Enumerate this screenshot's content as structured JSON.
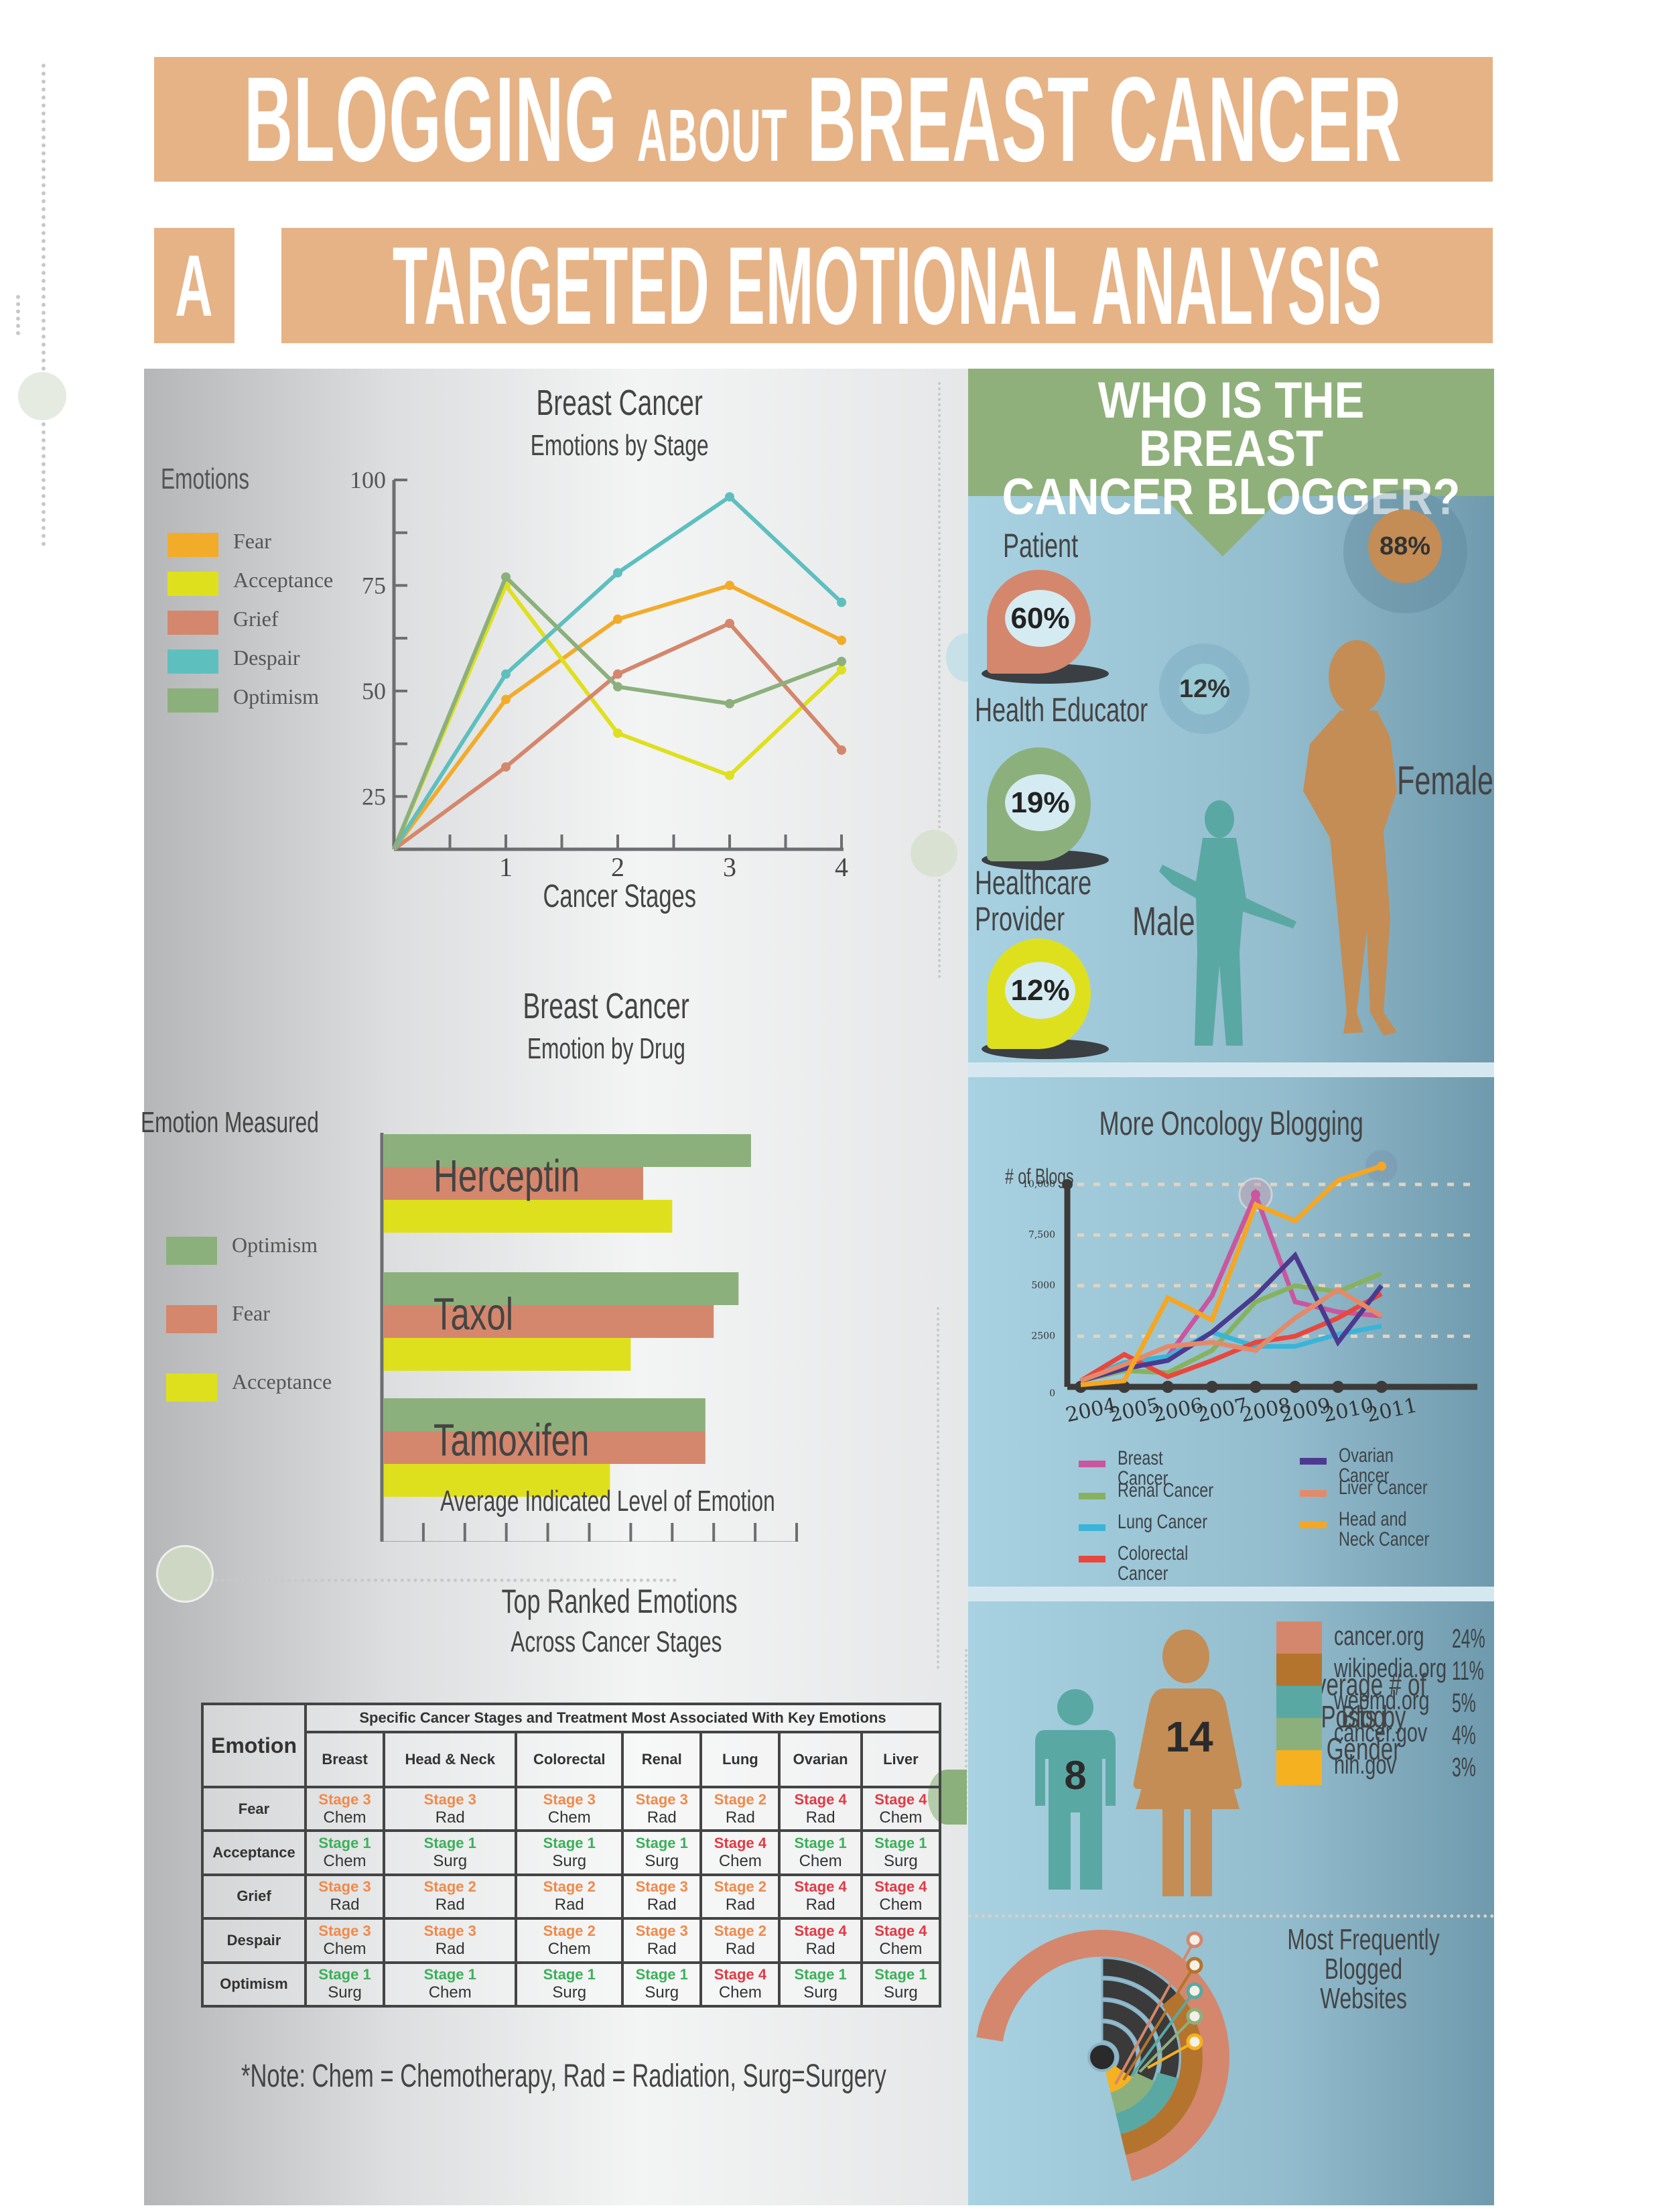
{
  "header": {
    "title_line1_a": "BLOGGING",
    "title_line1_b": "ABOUT",
    "title_line1_c": "BREAST CANCER",
    "title_line2_a": "A",
    "title_line2_b": "TARGETED EMOTIONAL ANALYSIS",
    "accent": "#e6b386"
  },
  "emotions_by_stage": {
    "chart_data": {
      "type": "line",
      "title": "Breast Cancer",
      "subtitle": "Emotions by Stage",
      "xlabel": "Cancer Stages",
      "ylabel": "",
      "legend_title": "Emotions",
      "x": [
        0,
        1,
        2,
        3,
        4
      ],
      "xticks": [
        "1",
        "2",
        "3",
        "4"
      ],
      "yticks": [
        "25",
        "50",
        "75",
        "100"
      ],
      "ylim": [
        12.5,
        100
      ],
      "legend": "left",
      "series": [
        {
          "name": "Fear",
          "color": "#f2ac2a",
          "values": [
            12.5,
            48,
            67,
            75,
            62
          ]
        },
        {
          "name": "Acceptance",
          "color": "#dfe01d",
          "values": [
            12.5,
            75,
            40,
            30,
            55
          ]
        },
        {
          "name": "Grief",
          "color": "#d4876c",
          "values": [
            12.5,
            32,
            54,
            66,
            36
          ]
        },
        {
          "name": "Despair",
          "color": "#5ebfbf",
          "values": [
            12.5,
            54,
            78,
            96,
            71
          ]
        },
        {
          "name": "Optimism",
          "color": "#8cb07c",
          "values": [
            12.5,
            77,
            51,
            47,
            57
          ]
        }
      ]
    }
  },
  "emotion_by_drug": {
    "chart_data": {
      "type": "bar",
      "orientation": "horizontal",
      "title": "Breast Cancer",
      "subtitle": "Emotion by Drug",
      "xlabel": "Average Indicated Level of Emotion",
      "legend_title": "Emotion Measured",
      "categories": [
        "Herceptin",
        "Taxol",
        "Tamoxifen"
      ],
      "xticks": [
        "10",
        "20",
        "30",
        "40",
        "50",
        "60",
        "70",
        "80",
        "90",
        "100"
      ],
      "xlim": [
        0,
        100
      ],
      "legend": "left",
      "series": [
        {
          "name": "Optimism",
          "color": "#8cb07c",
          "values": [
            89,
            86,
            78
          ]
        },
        {
          "name": "Fear",
          "color": "#d4876c",
          "values": [
            63,
            80,
            78
          ]
        },
        {
          "name": "Acceptance",
          "color": "#dfe01d",
          "values": [
            70,
            60,
            55
          ]
        }
      ]
    }
  },
  "top_ranked": {
    "title": "Top Ranked Emotions",
    "subtitle": "Across Cancer Stages",
    "col_header_emotion": "Emotion",
    "col_header_group": "Specific Cancer Stages and Treatment Most Associated With Key Emotions",
    "columns": [
      "Breast",
      "Head & Neck",
      "Colorectal",
      "Renal",
      "Lung",
      "Ovarian",
      "Liver"
    ],
    "rows": [
      {
        "emotion": "Fear",
        "cells": [
          {
            "stage": "Stage 3",
            "tx": "Chem",
            "tone": "orange"
          },
          {
            "stage": "Stage 3",
            "tx": "Rad",
            "tone": "orange"
          },
          {
            "stage": "Stage 3",
            "tx": "Chem",
            "tone": "orange"
          },
          {
            "stage": "Stage 3",
            "tx": "Rad",
            "tone": "orange"
          },
          {
            "stage": "Stage 2",
            "tx": "Rad",
            "tone": "orange"
          },
          {
            "stage": "Stage 4",
            "tx": "Rad",
            "tone": "red"
          },
          {
            "stage": "Stage 4",
            "tx": "Chem",
            "tone": "red"
          }
        ]
      },
      {
        "emotion": "Acceptance",
        "cells": [
          {
            "stage": "Stage 1",
            "tx": "Chem",
            "tone": "green"
          },
          {
            "stage": "Stage 1",
            "tx": "Surg",
            "tone": "green"
          },
          {
            "stage": "Stage 1",
            "tx": "Surg",
            "tone": "green"
          },
          {
            "stage": "Stage 1",
            "tx": "Surg",
            "tone": "green"
          },
          {
            "stage": "Stage 4",
            "tx": "Chem",
            "tone": "red"
          },
          {
            "stage": "Stage 1",
            "tx": "Chem",
            "tone": "green"
          },
          {
            "stage": "Stage 1",
            "tx": "Surg",
            "tone": "green"
          }
        ]
      },
      {
        "emotion": "Grief",
        "cells": [
          {
            "stage": "Stage 3",
            "tx": "Rad",
            "tone": "orange"
          },
          {
            "stage": "Stage 2",
            "tx": "Rad",
            "tone": "orange"
          },
          {
            "stage": "Stage 2",
            "tx": "Rad",
            "tone": "orange"
          },
          {
            "stage": "Stage 3",
            "tx": "Rad",
            "tone": "orange"
          },
          {
            "stage": "Stage 2",
            "tx": "Rad",
            "tone": "orange"
          },
          {
            "stage": "Stage 4",
            "tx": "Rad",
            "tone": "red"
          },
          {
            "stage": "Stage 4",
            "tx": "Chem",
            "tone": "red"
          }
        ]
      },
      {
        "emotion": "Despair",
        "cells": [
          {
            "stage": "Stage 3",
            "tx": "Chem",
            "tone": "orange"
          },
          {
            "stage": "Stage 3",
            "tx": "Rad",
            "tone": "orange"
          },
          {
            "stage": "Stage 2",
            "tx": "Chem",
            "tone": "orange"
          },
          {
            "stage": "Stage 3",
            "tx": "Rad",
            "tone": "orange"
          },
          {
            "stage": "Stage 2",
            "tx": "Rad",
            "tone": "orange"
          },
          {
            "stage": "Stage 4",
            "tx": "Rad",
            "tone": "red"
          },
          {
            "stage": "Stage 4",
            "tx": "Chem",
            "tone": "red"
          }
        ]
      },
      {
        "emotion": "Optimism",
        "cells": [
          {
            "stage": "Stage 1",
            "tx": "Surg",
            "tone": "green"
          },
          {
            "stage": "Stage 1",
            "tx": "Chem",
            "tone": "green"
          },
          {
            "stage": "Stage 1",
            "tx": "Surg",
            "tone": "green"
          },
          {
            "stage": "Stage 1",
            "tx": "Surg",
            "tone": "green"
          },
          {
            "stage": "Stage 4",
            "tx": "Chem",
            "tone": "red"
          },
          {
            "stage": "Stage 1",
            "tx": "Surg",
            "tone": "green"
          },
          {
            "stage": "Stage 1",
            "tx": "Surg",
            "tone": "green"
          }
        ]
      }
    ],
    "tone_colors": {
      "orange": "#f0894a",
      "green": "#3cb05a",
      "red": "#e23a44"
    },
    "note": "*Note: Chem = Chemotherapy, Rad = Radiation, Surg=Surgery"
  },
  "who": {
    "title_line1": "WHO IS THE BREAST",
    "title_line2": "CANCER BLOGGER?",
    "roles": [
      {
        "label": "Patient",
        "pct": "60%",
        "color": "#d4876c"
      },
      {
        "label": "Health Educator",
        "pct": "19%",
        "color": "#8cb07c"
      },
      {
        "label_line1": "Healthcare",
        "label_line2": "Provider",
        "pct": "12%",
        "color": "#dfe01d"
      }
    ],
    "male_label": "Male",
    "male_pct": "12%",
    "female_label": "Female",
    "female_pct": "88%",
    "male_color": "#5aa8a3",
    "female_color": "#c38d55"
  },
  "oncology": {
    "chart_data": {
      "type": "line",
      "title": "More Oncology Blogging",
      "ylabel": "# of Blogs",
      "xlabel": "",
      "x": [
        "2004",
        "2005",
        "2006",
        "2007",
        "2008",
        "2009",
        "2010",
        "2011"
      ],
      "yticks": [
        "0",
        "2500",
        "5000",
        "7,500",
        "10,000"
      ],
      "ylim": [
        0,
        10000
      ],
      "grid": true,
      "legend": "bottom",
      "series": [
        {
          "name": "Breast Cancer",
          "color": "#c9569e",
          "values": [
            300,
            800,
            1500,
            4500,
            9500,
            4200,
            3700,
            3500
          ]
        },
        {
          "name": "Renal Cancer",
          "color": "#86b25e",
          "values": [
            300,
            800,
            700,
            1800,
            4200,
            5000,
            4700,
            5600
          ]
        },
        {
          "name": "Lung Cancer",
          "color": "#3ab4d8",
          "values": [
            300,
            1200,
            1500,
            2700,
            2000,
            2000,
            2600,
            3000
          ]
        },
        {
          "name": "Colorectal Cancer",
          "color": "#e8473e",
          "values": [
            300,
            1600,
            500,
            1300,
            2200,
            2500,
            3400,
            4600
          ]
        },
        {
          "name": "Ovarian Cancer",
          "color": "#4b3a8f",
          "values": [
            300,
            900,
            1300,
            2700,
            4500,
            6500,
            2200,
            5000
          ]
        },
        {
          "name": "Liver Cancer",
          "color": "#e48a6a",
          "values": [
            300,
            1100,
            2000,
            2200,
            1800,
            3400,
            4800,
            3500
          ]
        },
        {
          "name": "Head and Neck Cancer",
          "color": "#f5a623",
          "values": [
            100,
            300,
            4400,
            3300,
            9000,
            8200,
            10200,
            10900
          ]
        }
      ]
    }
  },
  "posts_by_gender": {
    "title_line1": "Average # of Blog",
    "title_line2": "Posts by Gender",
    "male_value": "8",
    "female_value": "14"
  },
  "websites": {
    "chart_data": {
      "type": "pie",
      "variant": "radial-rings",
      "title_line1": "Most Frequently Blogged",
      "title_line2": "Websites",
      "legend": "right",
      "categories": [
        "cancer.org",
        "wikipedia.org",
        "webmd.org",
        "cancer.gov",
        "nih.gov"
      ],
      "values": [
        24,
        11,
        5,
        4,
        3
      ],
      "labels": [
        "24%",
        "11%",
        "5%",
        "4%",
        "3%"
      ],
      "colors": [
        "#d4876c",
        "#b4742e",
        "#5aa8a3",
        "#8cb07c",
        "#f5b120"
      ]
    }
  }
}
